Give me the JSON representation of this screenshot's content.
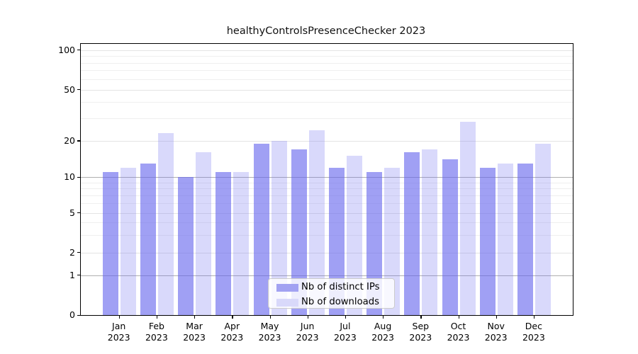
{
  "title": "healthyControlsPresenceChecker 2023",
  "chart_data": {
    "type": "bar",
    "title": "healthyControlsPresenceChecker 2023",
    "categories": [
      "Jan",
      "Feb",
      "Mar",
      "Apr",
      "May",
      "Jun",
      "Jul",
      "Aug",
      "Sep",
      "Oct",
      "Nov",
      "Dec"
    ],
    "category_year_line": "2023",
    "series": [
      {
        "name": "Nb of distinct IPs",
        "color": "rgba(102,102,238,0.62)",
        "legend_color": "#a2a2f2",
        "values": [
          11,
          13,
          10,
          11,
          19,
          17,
          12,
          11,
          16,
          14,
          12,
          13
        ]
      },
      {
        "name": "Nb of downloads",
        "color": "rgba(102,102,238,0.25)",
        "legend_color": "#d9d9fa",
        "values": [
          12,
          23,
          16,
          11,
          20,
          24,
          15,
          12,
          17,
          28,
          13,
          19
        ]
      }
    ],
    "yscale": "log-above-1-linear-below-1",
    "ytick_labels": [
      "100",
      "50",
      "20",
      "10",
      "5",
      "2",
      "1",
      "0"
    ],
    "yticks": [
      100,
      50,
      20,
      10,
      5,
      2,
      1,
      0
    ],
    "minor_yticks": [
      3,
      4,
      6,
      7,
      8,
      9,
      30,
      40,
      60,
      70,
      80,
      90
    ],
    "ylim": [
      0,
      115
    ],
    "grid": true,
    "legend_position": "lower-center-inside",
    "colors": {
      "emphasis_gridline": "#afafaf",
      "major_gridline": "#e4e4e4",
      "minor_gridline": "#efefef",
      "axis": "#000000",
      "text": "#000000"
    }
  }
}
